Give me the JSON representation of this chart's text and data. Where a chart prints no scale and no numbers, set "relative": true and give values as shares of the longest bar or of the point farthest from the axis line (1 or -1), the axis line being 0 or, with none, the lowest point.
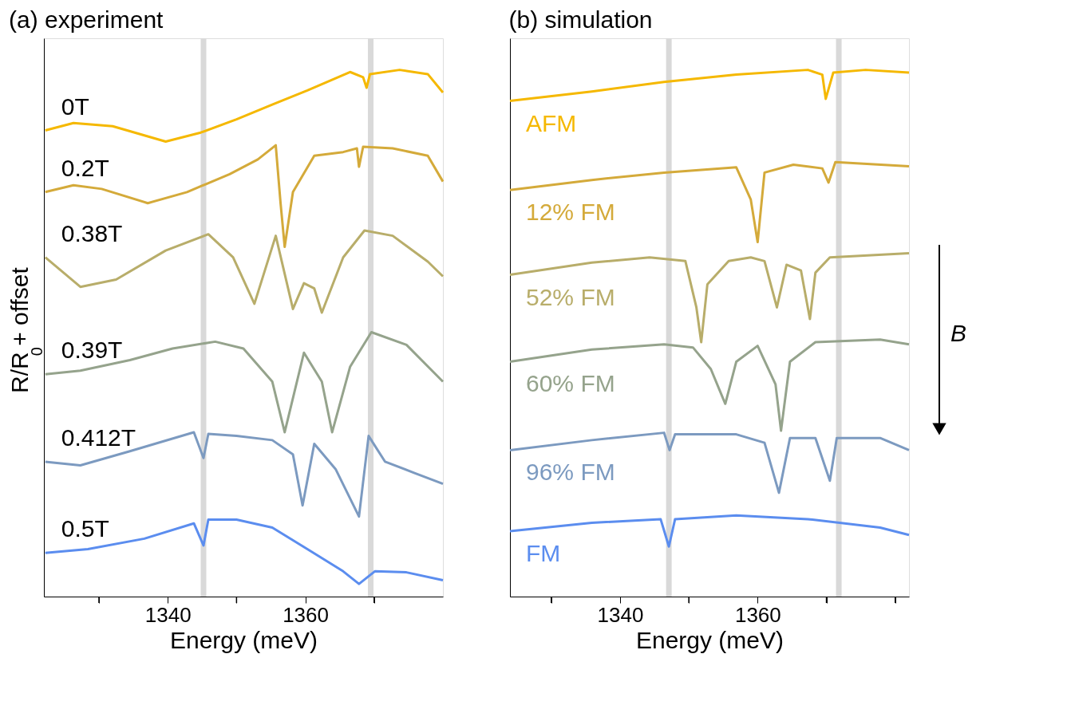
{
  "chart_data": [
    {
      "type": "line",
      "title": "(a) experiment",
      "xlabel": "Energy (meV)",
      "ylabel": "R/R$_{0}$ + offset",
      "relative": true,
      "legend": false,
      "grid": false,
      "marker": "none",
      "line_style": "solid",
      "xlim": [
        1322,
        1380
      ],
      "xticks": [
        {
          "value": 1330,
          "label": null
        },
        1340,
        {
          "value": 1350,
          "label": null
        },
        1360,
        {
          "value": 1370,
          "label": null
        }
      ],
      "ref_lines": [
        {
          "axis": "x",
          "value": 1345.2,
          "label": null,
          "color": "#d9d9d9"
        },
        {
          "axis": "x",
          "value": 1369.5,
          "label": null,
          "color": "#d9d9d9"
        }
      ],
      "series": [
        {
          "name": "0T",
          "color": "#f5b800",
          "x": [
            1322.2,
            1326.3,
            1332.0,
            1339.7,
            1344.8,
            1350.0,
            1355.2,
            1360.3,
            1366.5,
            1368.4,
            1368.9,
            1369.4,
            1373.7,
            1377.8,
            1380
          ],
          "values": [
            0.885,
            0.899,
            0.893,
            0.864,
            0.881,
            0.906,
            0.934,
            0.961,
            0.996,
            0.986,
            0.966,
            0.992,
            1,
            0.992,
            0.957
          ]
        },
        {
          "name": "0.2T",
          "color": "#d4aa3a",
          "x": [
            1322.2,
            1326.3,
            1330.4,
            1337.1,
            1342.8,
            1349.0,
            1353.1,
            1355.7,
            1356.4,
            1357.0,
            1358.2,
            1361.3,
            1365.5,
            1367.5,
            1367.8,
            1368.4,
            1372.7,
            1377.8,
            1380
          ],
          "values": [
            0.768,
            0.781,
            0.774,
            0.747,
            0.768,
            0.802,
            0.83,
            0.857,
            0.747,
            0.664,
            0.768,
            0.837,
            0.844,
            0.851,
            0.816,
            0.854,
            0.851,
            0.837,
            0.788
          ]
        },
        {
          "name": "0.38T",
          "color": "#b8ad6a",
          "x": [
            1322.2,
            1327.3,
            1332.5,
            1339.7,
            1345.9,
            1349.5,
            1352.6,
            1355.7,
            1358.2,
            1359.8,
            1361.3,
            1362.4,
            1365.5,
            1368.6,
            1372.7,
            1377.8,
            1380
          ],
          "values": [
            0.644,
            0.588,
            0.602,
            0.657,
            0.688,
            0.644,
            0.556,
            0.685,
            0.546,
            0.595,
            0.585,
            0.539,
            0.644,
            0.695,
            0.685,
            0.636,
            0.608
          ]
        },
        {
          "name": "0.39T",
          "color": "#95a38c",
          "x": [
            1322.2,
            1327.3,
            1334.5,
            1340.7,
            1346.9,
            1351.0,
            1355.2,
            1357.0,
            1359.8,
            1362.4,
            1363.9,
            1366.5,
            1369.6,
            1374.7,
            1380
          ],
          "values": [
            0.422,
            0.429,
            0.449,
            0.471,
            0.484,
            0.471,
            0.408,
            0.312,
            0.463,
            0.408,
            0.312,
            0.436,
            0.502,
            0.478,
            0.408
          ]
        },
        {
          "name": "0.412T",
          "color": "#7c9ac0",
          "x": [
            1322.2,
            1327.3,
            1334.5,
            1343.8,
            1345.2,
            1345.9,
            1350.0,
            1355.2,
            1358.2,
            1359.6,
            1361.3,
            1364.4,
            1367.8,
            1369.2,
            1371.6,
            1375.8,
            1380
          ],
          "values": [
            0.256,
            0.249,
            0.276,
            0.312,
            0.263,
            0.309,
            0.305,
            0.297,
            0.27,
            0.173,
            0.29,
            0.242,
            0.152,
            0.305,
            0.256,
            0.235,
            0.214
          ]
        },
        {
          "name": "0.5T",
          "color": "#5b8def",
          "x": [
            1322.2,
            1328.4,
            1336.6,
            1343.8,
            1345.2,
            1345.9,
            1350.0,
            1355.2,
            1360.3,
            1365.5,
            1367.8,
            1370.1,
            1374.7,
            1380
          ],
          "values": [
            0.083,
            0.09,
            0.11,
            0.139,
            0.097,
            0.146,
            0.146,
            0.131,
            0.09,
            0.048,
            0.024,
            0.048,
            0.046,
            0.031
          ]
        }
      ]
    },
    {
      "type": "line",
      "title": "(b) simulation",
      "xlabel": "Energy (meV)",
      "relative": true,
      "legend": false,
      "grid": false,
      "marker": "none",
      "line_style": "solid",
      "xlim": [
        1324,
        1382
      ],
      "xticks": [
        {
          "value": 1330,
          "label": null
        },
        1340,
        {
          "value": 1350,
          "label": null
        },
        1360,
        {
          "value": 1370,
          "label": null
        },
        {
          "value": 1380,
          "label": null
        }
      ],
      "ref_lines": [
        {
          "axis": "x",
          "value": 1347.1,
          "label": null,
          "color": "#d9d9d9"
        },
        {
          "axis": "x",
          "value": 1371.8,
          "label": null,
          "color": "#d9d9d9"
        }
      ],
      "annotations": [
        "B"
      ],
      "series": [
        {
          "name": "AFM",
          "color": "#f5b800",
          "x": [
            1324,
            1335.9,
            1346.4,
            1356.9,
            1367.3,
            1369.4,
            1369.9,
            1371.0,
            1375.7,
            1382
          ],
          "values": [
            0.941,
            0.959,
            0.977,
            0.991,
            1,
            0.991,
            0.945,
            0.995,
            1,
            0.995
          ]
        },
        {
          "name": "12% FM",
          "color": "#d4aa3a",
          "x": [
            1324,
            1335.9,
            1346.4,
            1356.9,
            1359.0,
            1360.0,
            1361.0,
            1365.2,
            1369.4,
            1370.3,
            1371.3,
            1382
          ],
          "values": [
            0.772,
            0.791,
            0.805,
            0.815,
            0.754,
            0.673,
            0.805,
            0.82,
            0.813,
            0.786,
            0.825,
            0.817
          ]
        },
        {
          "name": "52% FM",
          "color": "#b8ad6a",
          "x": [
            1324,
            1335.9,
            1344.3,
            1349.5,
            1351.1,
            1351.8,
            1352.7,
            1355.8,
            1359.0,
            1361.0,
            1362.8,
            1364.2,
            1366.3,
            1367.6,
            1368.4,
            1370.5,
            1382
          ],
          "values": [
            0.611,
            0.634,
            0.644,
            0.637,
            0.549,
            0.483,
            0.593,
            0.637,
            0.644,
            0.637,
            0.549,
            0.63,
            0.619,
            0.527,
            0.615,
            0.644,
            0.652
          ]
        },
        {
          "name": "60% FM",
          "color": "#95a38c",
          "x": [
            1324,
            1335.9,
            1346.4,
            1350.6,
            1353.2,
            1355.3,
            1356.9,
            1360.0,
            1362.6,
            1363.4,
            1364.7,
            1368.4,
            1377.8,
            1382
          ],
          "values": [
            0.446,
            0.469,
            0.479,
            0.473,
            0.432,
            0.366,
            0.446,
            0.476,
            0.403,
            0.315,
            0.446,
            0.483,
            0.488,
            0.479
          ]
        },
        {
          "name": "96% FM",
          "color": "#7c9ac0",
          "x": [
            1324,
            1335.9,
            1346.4,
            1347.2,
            1348.0,
            1356.9,
            1361.0,
            1363.1,
            1364.7,
            1368.4,
            1370.5,
            1371.5,
            1377.8,
            1382
          ],
          "values": [
            0.278,
            0.297,
            0.311,
            0.278,
            0.308,
            0.308,
            0.292,
            0.197,
            0.301,
            0.301,
            0.22,
            0.301,
            0.301,
            0.278
          ]
        },
        {
          "name": "FM",
          "color": "#5b8def",
          "x": [
            1324,
            1335.9,
            1345.9,
            1347.1,
            1348.0,
            1356.9,
            1367.3,
            1377.8,
            1382
          ],
          "values": [
            0.124,
            0.14,
            0.147,
            0.095,
            0.147,
            0.154,
            0.147,
            0.131,
            0.117
          ]
        }
      ]
    }
  ]
}
